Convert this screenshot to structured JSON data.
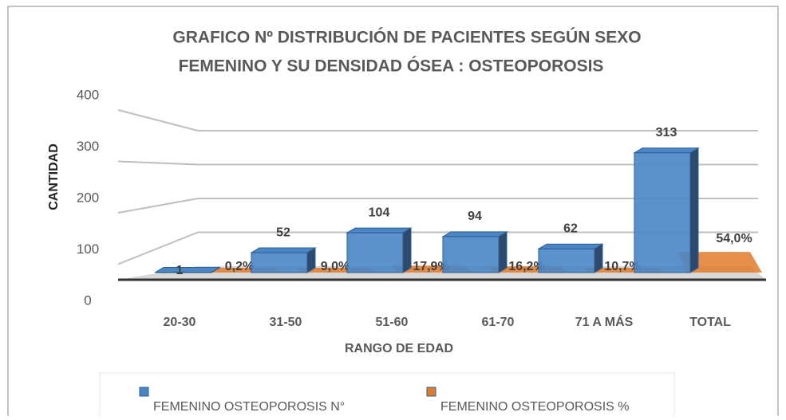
{
  "chart_data": {
    "type": "bar3d",
    "title": [
      "GRAFICO Nº     DISTRIBUCIÓN DE PACIENTES SEGÚN SEXO",
      "FEMENINO  Y SU DENSIDAD ÓSEA : OSTEOPOROSIS"
    ],
    "y_label": "CANTIDAD",
    "x_label": "RANGO DE EDAD",
    "categories": [
      "20-30",
      "31-50",
      "51-60",
      "61-70",
      "71  A MÁS",
      "TOTAL"
    ],
    "series": [
      {
        "name": "FEMENINO OSTEOPOROSIS N°",
        "color": "#4a86c5",
        "values": [
          1,
          52,
          104,
          94,
          62,
          313
        ]
      },
      {
        "name": "FEMENINO OSTEOPOROSIS %",
        "color": "#e07b2c",
        "values": [
          0.2,
          9.0,
          17.9,
          16.2,
          10.7,
          54.0
        ],
        "value_labels": [
          "0,2%",
          "9,0%",
          "17,9%",
          "16,2%",
          "10,7%",
          "54,0%"
        ]
      }
    ],
    "ylim": [
      0,
      400
    ],
    "yticks": [
      0,
      100,
      200,
      300,
      400
    ],
    "grid": true,
    "legend": "bottom"
  }
}
